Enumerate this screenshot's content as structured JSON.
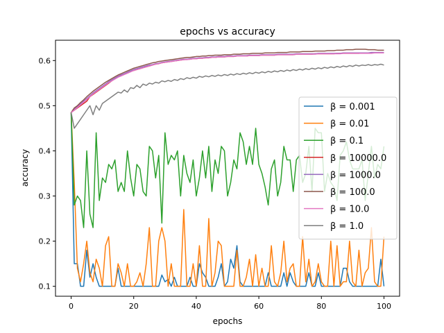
{
  "chart_data": {
    "type": "line",
    "title": "epochs vs accuracy",
    "xlabel": "epochs",
    "ylabel": "accuracy",
    "xlim": [
      -5,
      105
    ],
    "ylim": [
      0.078,
      0.645
    ],
    "xticks": [
      0,
      20,
      40,
      60,
      80,
      100
    ],
    "yticks": [
      0.1,
      0.2,
      0.3,
      0.4,
      0.5,
      0.6
    ],
    "grid": false,
    "legend_position": "center-right",
    "x_start": 0,
    "x_step": 1,
    "series": [
      {
        "name": "β = 0.001",
        "color": "#1f77b4",
        "values": [
          0.485,
          0.15,
          0.15,
          0.1,
          0.1,
          0.18,
          0.12,
          0.15,
          0.12,
          0.1,
          0.1,
          0.1,
          0.1,
          0.1,
          0.1,
          0.14,
          0.1,
          0.1,
          0.1,
          0.1,
          0.1,
          0.1,
          0.1,
          0.1,
          0.1,
          0.1,
          0.1,
          0.1,
          0.1,
          0.125,
          0.11,
          0.115,
          0.1,
          0.12,
          0.1,
          0.1,
          0.1,
          0.1,
          0.12,
          0.1,
          0.1,
          0.15,
          0.13,
          0.12,
          0.1,
          0.1,
          0.1,
          0.12,
          0.15,
          0.1,
          0.11,
          0.16,
          0.14,
          0.19,
          0.11,
          0.1,
          0.1,
          0.1,
          0.1,
          0.1,
          0.1,
          0.1,
          0.1,
          0.13,
          0.1,
          0.1,
          0.1,
          0.1,
          0.13,
          0.1,
          0.13,
          0.11,
          0.1,
          0.1,
          0.1,
          0.1,
          0.13,
          0.1,
          0.1,
          0.13,
          0.1,
          0.1,
          0.1,
          0.1,
          0.1,
          0.1,
          0.1,
          0.14,
          0.14,
          0.11,
          0.1,
          0.1,
          0.1,
          0.1,
          0.1,
          0.1,
          0.1,
          0.1,
          0.1,
          0.16,
          0.1
        ]
      },
      {
        "name": "β = 0.01",
        "color": "#ff7f0e",
        "values": [
          0.485,
          0.33,
          0.14,
          0.11,
          0.15,
          0.2,
          0.13,
          0.11,
          0.16,
          0.14,
          0.1,
          0.19,
          0.21,
          0.1,
          0.1,
          0.15,
          0.13,
          0.1,
          0.15,
          0.1,
          0.1,
          0.11,
          0.13,
          0.1,
          0.15,
          0.23,
          0.1,
          0.1,
          0.2,
          0.23,
          0.2,
          0.1,
          0.15,
          0.1,
          0.1,
          0.1,
          0.27,
          0.1,
          0.1,
          0.15,
          0.1,
          0.19,
          0.1,
          0.1,
          0.25,
          0.1,
          0.13,
          0.2,
          0.19,
          0.1,
          0.1,
          0.1,
          0.1,
          0.18,
          0.1,
          0.1,
          0.12,
          0.16,
          0.1,
          0.17,
          0.1,
          0.14,
          0.1,
          0.1,
          0.19,
          0.11,
          0.1,
          0.13,
          0.2,
          0.11,
          0.14,
          0.15,
          0.1,
          0.1,
          0.21,
          0.11,
          0.16,
          0.1,
          0.11,
          0.15,
          0.11,
          0.1,
          0.1,
          0.2,
          0.1,
          0.19,
          0.1,
          0.11,
          0.11,
          0.2,
          0.11,
          0.1,
          0.18,
          0.1,
          0.13,
          0.14,
          0.23,
          0.11,
          0.1,
          0.1,
          0.21
        ]
      },
      {
        "name": "β = 0.1",
        "color": "#2ca02c",
        "values": [
          0.485,
          0.28,
          0.3,
          0.29,
          0.23,
          0.4,
          0.26,
          0.23,
          0.44,
          0.29,
          0.34,
          0.33,
          0.37,
          0.36,
          0.38,
          0.31,
          0.33,
          0.31,
          0.4,
          0.34,
          0.3,
          0.37,
          0.36,
          0.31,
          0.3,
          0.41,
          0.4,
          0.34,
          0.39,
          0.24,
          0.44,
          0.37,
          0.39,
          0.38,
          0.4,
          0.3,
          0.39,
          0.35,
          0.33,
          0.38,
          0.3,
          0.34,
          0.4,
          0.34,
          0.41,
          0.31,
          0.38,
          0.35,
          0.41,
          0.4,
          0.3,
          0.33,
          0.38,
          0.36,
          0.44,
          0.42,
          0.37,
          0.41,
          0.37,
          0.45,
          0.37,
          0.35,
          0.32,
          0.28,
          0.36,
          0.38,
          0.3,
          0.33,
          0.41,
          0.38,
          0.38,
          0.31,
          0.38,
          0.39,
          0.33,
          0.35,
          0.41,
          0.31,
          0.45,
          0.44,
          0.44,
          0.31,
          0.35,
          0.33,
          0.32,
          0.29,
          0.39,
          0.4,
          0.42,
          0.38,
          0.36,
          0.36,
          0.36,
          0.38,
          0.29,
          0.35,
          0.41,
          0.34,
          0.37,
          0.36,
          0.41
        ]
      },
      {
        "name": "β = 10000.0",
        "color": "#d62728",
        "values": [
          0.485,
          0.49,
          0.495,
          0.5,
          0.505,
          0.51,
          0.52,
          0.525,
          0.53,
          0.535,
          0.54,
          0.545,
          0.55,
          0.555,
          0.56,
          0.565,
          0.568,
          0.57,
          0.573,
          0.576,
          0.578,
          0.58,
          0.582,
          0.584,
          0.586,
          0.588,
          0.59,
          0.592,
          0.593,
          0.595,
          0.596,
          0.597,
          0.598,
          0.599,
          0.6,
          0.601,
          0.602,
          0.603,
          0.603,
          0.604,
          0.604,
          0.605,
          0.605,
          0.606,
          0.606,
          0.607,
          0.607,
          0.608,
          0.608,
          0.608,
          0.609,
          0.609,
          0.609,
          0.61,
          0.61,
          0.61,
          0.61,
          0.611,
          0.611,
          0.611,
          0.611,
          0.612,
          0.612,
          0.612,
          0.612,
          0.612,
          0.613,
          0.613,
          0.613,
          0.613,
          0.613,
          0.613,
          0.614,
          0.614,
          0.614,
          0.614,
          0.614,
          0.614,
          0.615,
          0.615,
          0.615,
          0.615,
          0.615,
          0.615,
          0.615,
          0.616,
          0.616,
          0.616,
          0.616,
          0.616,
          0.616,
          0.616,
          0.616,
          0.617,
          0.617,
          0.617,
          0.617,
          0.617,
          0.617,
          0.617,
          0.617
        ]
      },
      {
        "name": "β = 1000.0",
        "color": "#9467bd",
        "values": [
          0.485,
          0.492,
          0.498,
          0.504,
          0.51,
          0.516,
          0.522,
          0.528,
          0.533,
          0.538,
          0.543,
          0.548,
          0.553,
          0.557,
          0.561,
          0.565,
          0.568,
          0.571,
          0.574,
          0.577,
          0.58,
          0.582,
          0.584,
          0.586,
          0.588,
          0.59,
          0.591,
          0.593,
          0.594,
          0.596,
          0.597,
          0.598,
          0.599,
          0.6,
          0.601,
          0.602,
          0.603,
          0.603,
          0.604,
          0.605,
          0.605,
          0.606,
          0.606,
          0.607,
          0.607,
          0.608,
          0.608,
          0.609,
          0.609,
          0.609,
          0.61,
          0.61,
          0.61,
          0.611,
          0.611,
          0.611,
          0.611,
          0.612,
          0.612,
          0.612,
          0.612,
          0.613,
          0.613,
          0.613,
          0.613,
          0.613,
          0.614,
          0.614,
          0.614,
          0.614,
          0.614,
          0.614,
          0.615,
          0.615,
          0.615,
          0.615,
          0.615,
          0.615,
          0.615,
          0.616,
          0.616,
          0.616,
          0.616,
          0.616,
          0.616,
          0.616,
          0.616,
          0.617,
          0.617,
          0.617,
          0.617,
          0.617,
          0.617,
          0.617,
          0.617,
          0.617,
          0.618,
          0.618,
          0.618,
          0.618,
          0.618
        ]
      },
      {
        "name": "β = 100.0",
        "color": "#8c564b",
        "values": [
          0.485,
          0.495,
          0.5,
          0.507,
          0.513,
          0.52,
          0.526,
          0.532,
          0.537,
          0.542,
          0.547,
          0.552,
          0.556,
          0.56,
          0.564,
          0.568,
          0.571,
          0.574,
          0.577,
          0.58,
          0.583,
          0.585,
          0.587,
          0.589,
          0.591,
          0.593,
          0.595,
          0.596,
          0.598,
          0.599,
          0.6,
          0.601,
          0.602,
          0.603,
          0.604,
          0.605,
          0.606,
          0.607,
          0.607,
          0.608,
          0.609,
          0.609,
          0.61,
          0.61,
          0.611,
          0.611,
          0.612,
          0.612,
          0.612,
          0.613,
          0.613,
          0.613,
          0.614,
          0.614,
          0.614,
          0.615,
          0.615,
          0.615,
          0.616,
          0.616,
          0.616,
          0.616,
          0.617,
          0.617,
          0.617,
          0.617,
          0.618,
          0.618,
          0.618,
          0.618,
          0.619,
          0.619,
          0.619,
          0.619,
          0.62,
          0.62,
          0.62,
          0.62,
          0.621,
          0.621,
          0.621,
          0.621,
          0.622,
          0.622,
          0.622,
          0.623,
          0.623,
          0.623,
          0.624,
          0.624,
          0.624,
          0.625,
          0.625,
          0.625,
          0.625,
          0.624,
          0.624,
          0.624,
          0.623,
          0.623,
          0.623
        ]
      },
      {
        "name": "β = 10.0",
        "color": "#e377c2",
        "values": [
          0.485,
          0.49,
          0.496,
          0.502,
          0.508,
          0.514,
          0.52,
          0.526,
          0.531,
          0.536,
          0.541,
          0.546,
          0.551,
          0.555,
          0.559,
          0.563,
          0.566,
          0.569,
          0.572,
          0.575,
          0.578,
          0.58,
          0.582,
          0.584,
          0.586,
          0.588,
          0.59,
          0.592,
          0.593,
          0.595,
          0.596,
          0.597,
          0.598,
          0.599,
          0.6,
          0.601,
          0.602,
          0.602,
          0.603,
          0.604,
          0.604,
          0.605,
          0.605,
          0.606,
          0.606,
          0.607,
          0.607,
          0.608,
          0.608,
          0.608,
          0.609,
          0.609,
          0.609,
          0.61,
          0.61,
          0.61,
          0.61,
          0.611,
          0.611,
          0.611,
          0.611,
          0.612,
          0.612,
          0.612,
          0.612,
          0.612,
          0.613,
          0.613,
          0.613,
          0.613,
          0.613,
          0.613,
          0.614,
          0.614,
          0.614,
          0.614,
          0.614,
          0.614,
          0.614,
          0.615,
          0.615,
          0.615,
          0.615,
          0.615,
          0.615,
          0.615,
          0.615,
          0.616,
          0.616,
          0.616,
          0.616,
          0.616,
          0.616,
          0.616,
          0.616,
          0.616,
          0.616,
          0.617,
          0.617,
          0.617,
          0.617
        ]
      },
      {
        "name": "β = 1.0",
        "color": "#7f7f7f",
        "values": [
          0.485,
          0.45,
          0.46,
          0.47,
          0.48,
          0.49,
          0.5,
          0.48,
          0.5,
          0.49,
          0.505,
          0.51,
          0.515,
          0.52,
          0.525,
          0.53,
          0.528,
          0.535,
          0.53,
          0.54,
          0.538,
          0.545,
          0.54,
          0.548,
          0.545,
          0.55,
          0.548,
          0.552,
          0.55,
          0.555,
          0.553,
          0.556,
          0.554,
          0.558,
          0.556,
          0.56,
          0.558,
          0.562,
          0.56,
          0.563,
          0.561,
          0.565,
          0.563,
          0.566,
          0.564,
          0.567,
          0.565,
          0.568,
          0.566,
          0.569,
          0.567,
          0.57,
          0.568,
          0.571,
          0.569,
          0.572,
          0.57,
          0.573,
          0.571,
          0.574,
          0.572,
          0.575,
          0.573,
          0.576,
          0.574,
          0.577,
          0.575,
          0.578,
          0.576,
          0.579,
          0.577,
          0.58,
          0.578,
          0.581,
          0.579,
          0.582,
          0.58,
          0.583,
          0.581,
          0.584,
          0.582,
          0.585,
          0.583,
          0.586,
          0.584,
          0.587,
          0.585,
          0.588,
          0.586,
          0.589,
          0.587,
          0.59,
          0.588,
          0.59,
          0.589,
          0.591,
          0.589,
          0.591,
          0.59,
          0.592,
          0.59
        ]
      }
    ]
  }
}
